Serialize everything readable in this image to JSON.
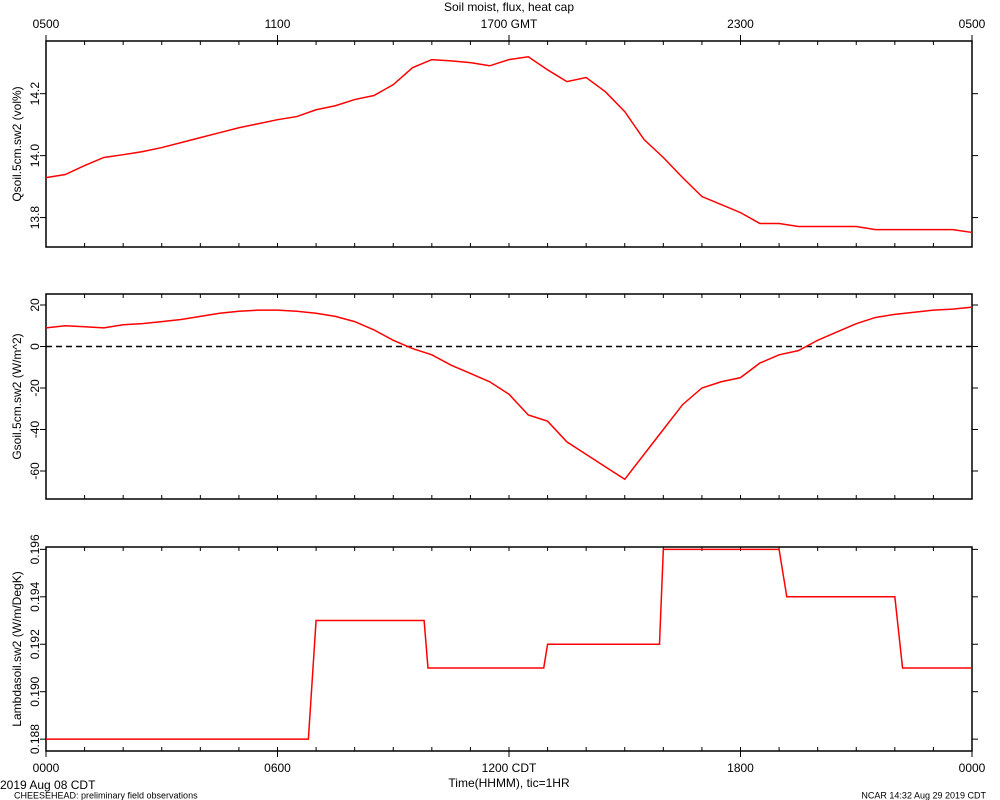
{
  "chart_data": [
    {
      "type": "line",
      "title": "Soil moist, flux, heat cap",
      "ylabel": "Qsoil.5cm.sw2 (vol%)",
      "color": "#ff0000",
      "xlim": [
        0,
        24
      ],
      "x2ticks": [
        {
          "value": 0,
          "label": "0500"
        },
        {
          "value": 6,
          "label": "1100"
        },
        {
          "value": 12,
          "label": "1700 GMT"
        },
        {
          "value": 18,
          "label": "2300"
        },
        {
          "value": 24,
          "label": "0500"
        }
      ],
      "ylim": [
        13.705,
        14.37
      ],
      "yticks": [
        13.8,
        {
          "value": 14,
          "label": "14.0"
        },
        14.2
      ],
      "x": [
        0,
        0.5,
        1,
        1.5,
        2,
        2.5,
        3,
        3.5,
        4,
        4.5,
        5,
        5.5,
        6,
        6.5,
        7,
        7.5,
        8,
        8.5,
        9,
        9.5,
        10,
        10.5,
        11,
        11.5,
        12,
        12.5,
        13,
        13.5,
        14,
        14.5,
        15,
        15.5,
        16,
        16.5,
        17,
        17.5,
        18,
        18.5,
        19,
        19.5,
        20,
        20.5,
        21,
        21.5,
        22,
        22.5,
        23,
        23.5,
        24
      ],
      "values": [
        13.929,
        13.939,
        13.968,
        13.994,
        14.003,
        14.013,
        14.026,
        14.042,
        14.058,
        14.074,
        14.09,
        14.103,
        14.116,
        14.126,
        14.148,
        14.161,
        14.181,
        14.194,
        14.229,
        14.284,
        14.31,
        14.306,
        14.3,
        14.29,
        14.31,
        14.319,
        14.277,
        14.239,
        14.252,
        14.206,
        14.142,
        14.052,
        13.994,
        13.929,
        13.868,
        13.842,
        13.816,
        13.781,
        13.781,
        13.771,
        13.771,
        13.771,
        13.771,
        13.761,
        13.761,
        13.761,
        13.761,
        13.761,
        13.752
      ]
    },
    {
      "type": "line",
      "ylabel": "Gsoil.5cm.sw2 (W/m^2)",
      "color": "#ff0000",
      "zero_line": true,
      "xlim": [
        0,
        24
      ],
      "ylim": [
        -73.5,
        25.3
      ],
      "yticks": [
        20,
        0,
        -20,
        -40,
        -60
      ],
      "x": [
        0,
        0.5,
        1,
        1.5,
        2,
        2.5,
        3,
        3.5,
        4,
        4.5,
        5,
        5.5,
        6,
        6.5,
        7,
        7.5,
        8,
        8.5,
        9,
        9.5,
        10,
        10.5,
        11,
        11.5,
        12,
        12.5,
        13,
        13.5,
        14,
        14.5,
        15,
        15.5,
        16,
        16.5,
        17,
        17.5,
        18,
        18.5,
        19,
        19.5,
        20,
        20.5,
        21,
        21.5,
        22,
        22.5,
        23,
        23.5,
        24
      ],
      "values": [
        9,
        10,
        9.5,
        9,
        10.5,
        11,
        12,
        13,
        14.5,
        16,
        17,
        17.5,
        17.5,
        17,
        16,
        14.5,
        12,
        8,
        3,
        -1,
        -4,
        -9,
        -13,
        -17,
        -23,
        -33,
        -36,
        -46,
        -52,
        -58,
        -64,
        -52,
        -40,
        -28,
        -20,
        -17,
        -15,
        -8,
        -4,
        -2,
        3,
        7,
        11,
        14,
        15.5,
        16.5,
        17.5,
        18,
        19
      ]
    },
    {
      "type": "line",
      "ylabel": "Lambdasoil.sw2 (W/m/DegK)",
      "color": "#ff0000",
      "xlabel": "Time(HHMM), tic=1HR",
      "xlim": [
        0,
        24
      ],
      "xticks": [
        {
          "value": 0,
          "label": "0000"
        },
        {
          "value": 6,
          "label": "0600"
        },
        {
          "value": 12,
          "label": "1200 CDT"
        },
        {
          "value": 18,
          "label": "1800"
        },
        {
          "value": 24,
          "label": "0000"
        }
      ],
      "ylim": [
        0.1875,
        0.1961
      ],
      "yticks": [
        0.188,
        0.19,
        0.192,
        0.194,
        0.196
      ],
      "ytick_labels": [
        "0.188",
        "0.190",
        "0.192",
        "0.194",
        "0.196"
      ],
      "x": [
        0,
        6.8,
        7,
        9.8,
        9.9,
        12.9,
        13,
        15.9,
        16,
        19,
        19.2,
        22,
        22.2,
        24
      ],
      "values": [
        0.188,
        0.188,
        0.193,
        0.193,
        0.191,
        0.191,
        0.192,
        0.192,
        0.196,
        0.196,
        0.194,
        0.194,
        0.191,
        0.191
      ]
    }
  ],
  "footer": {
    "date": "2019 Aug 08 CDT",
    "project": "CHEESEHEAD: preliminary field observations",
    "stamp": "NCAR 14:32 Aug 29 2019 CDT"
  }
}
